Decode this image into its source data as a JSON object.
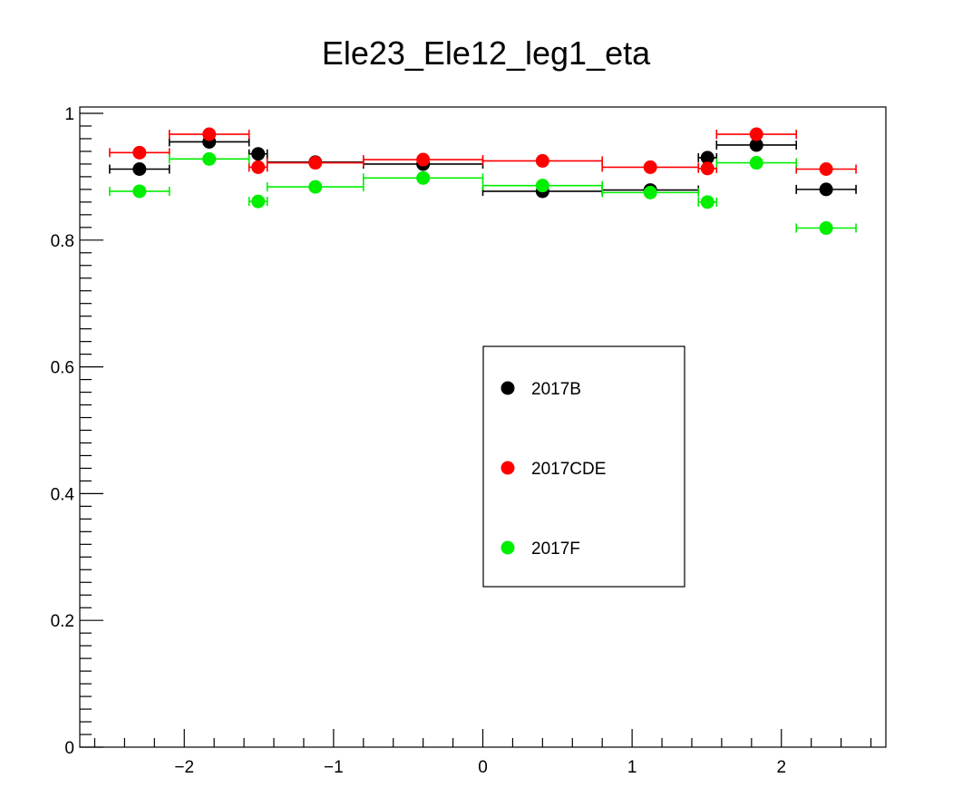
{
  "chart_data": {
    "type": "scatter",
    "title": "Ele23_Ele12_leg1_eta",
    "xlabel": "",
    "ylabel": "",
    "xlim": [
      -2.7,
      2.7
    ],
    "ylim": [
      0,
      1.01
    ],
    "x_ticks": [
      -2,
      -1,
      0,
      1,
      2
    ],
    "x_tick_labels": [
      "−2",
      "−1",
      "0",
      "1",
      "2"
    ],
    "y_ticks": [
      0,
      0.2,
      0.4,
      0.6,
      0.8,
      1
    ],
    "y_tick_labels": [
      "0",
      "0.2",
      "0.4",
      "0.6",
      "0.8",
      "1"
    ],
    "grid": false,
    "legend_position": "center-right",
    "bin_edges": [
      -2.5,
      -2.1,
      -1.566,
      -1.4442,
      -0.8,
      0,
      0.8,
      1.4442,
      1.566,
      2.1,
      2.5
    ],
    "x": [
      -2.3,
      -1.833,
      -1.505,
      -1.122,
      -0.4,
      0.4,
      1.122,
      1.505,
      1.833,
      2.3
    ],
    "series": [
      {
        "name": "2017B",
        "color": "#000000",
        "values": [
          0.912,
          0.955,
          0.936,
          0.923,
          0.92,
          0.877,
          0.879,
          0.93,
          0.95,
          0.88
        ]
      },
      {
        "name": "2017CDE",
        "color": "#ff0000",
        "values": [
          0.938,
          0.967,
          0.915,
          0.922,
          0.927,
          0.925,
          0.915,
          0.913,
          0.967,
          0.912
        ]
      },
      {
        "name": "2017F",
        "color": "#00ee00",
        "values": [
          0.877,
          0.928,
          0.861,
          0.884,
          0.898,
          0.886,
          0.875,
          0.86,
          0.922,
          0.819
        ]
      }
    ]
  }
}
